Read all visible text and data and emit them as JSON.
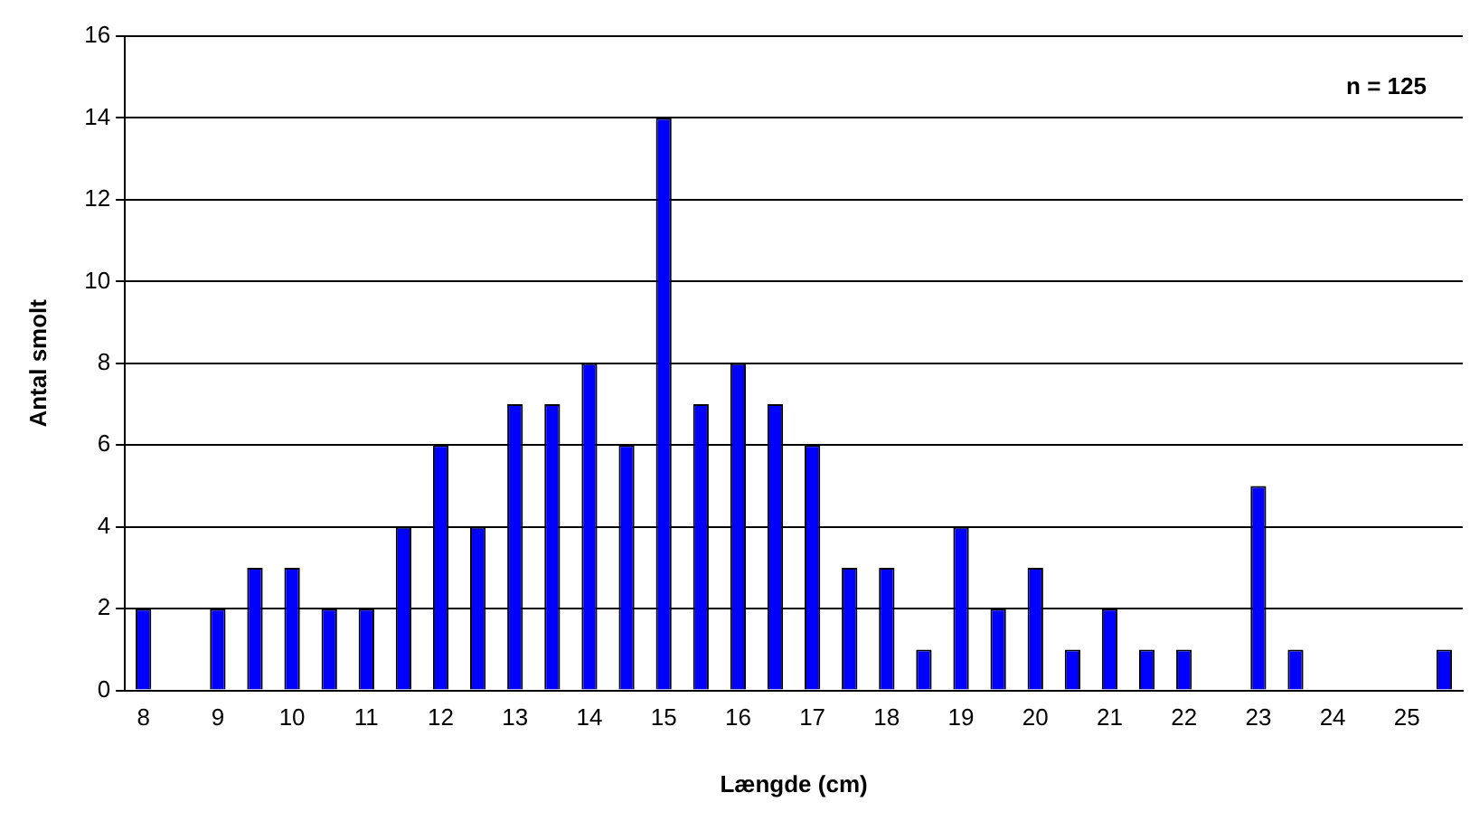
{
  "chart_data": {
    "type": "bar",
    "xlabel": "Længde (cm)",
    "ylabel": "Antal smolt",
    "categories": [
      "8",
      null,
      "9",
      null,
      "10",
      null,
      "11",
      null,
      "12",
      null,
      "13",
      null,
      "14",
      null,
      "15",
      null,
      "16",
      null,
      "17",
      null,
      "18",
      null,
      "19",
      null,
      "20",
      null,
      "21",
      null,
      "22",
      null,
      "23",
      null,
      "24",
      null,
      "25",
      null
    ],
    "values": [
      2,
      0,
      2,
      3,
      3,
      2,
      2,
      4,
      6,
      4,
      7,
      7,
      8,
      6,
      14,
      7,
      8,
      7,
      6,
      3,
      3,
      1,
      4,
      2,
      3,
      1,
      2,
      1,
      1,
      0,
      5,
      1,
      0,
      0,
      0,
      1
    ],
    "color": "#0000ff",
    "ylim": [
      0,
      16
    ],
    "yticks": [
      0,
      2,
      4,
      6,
      8,
      10,
      12,
      14,
      16
    ],
    "grid": "y",
    "annotations": [
      "n = 125"
    ]
  }
}
